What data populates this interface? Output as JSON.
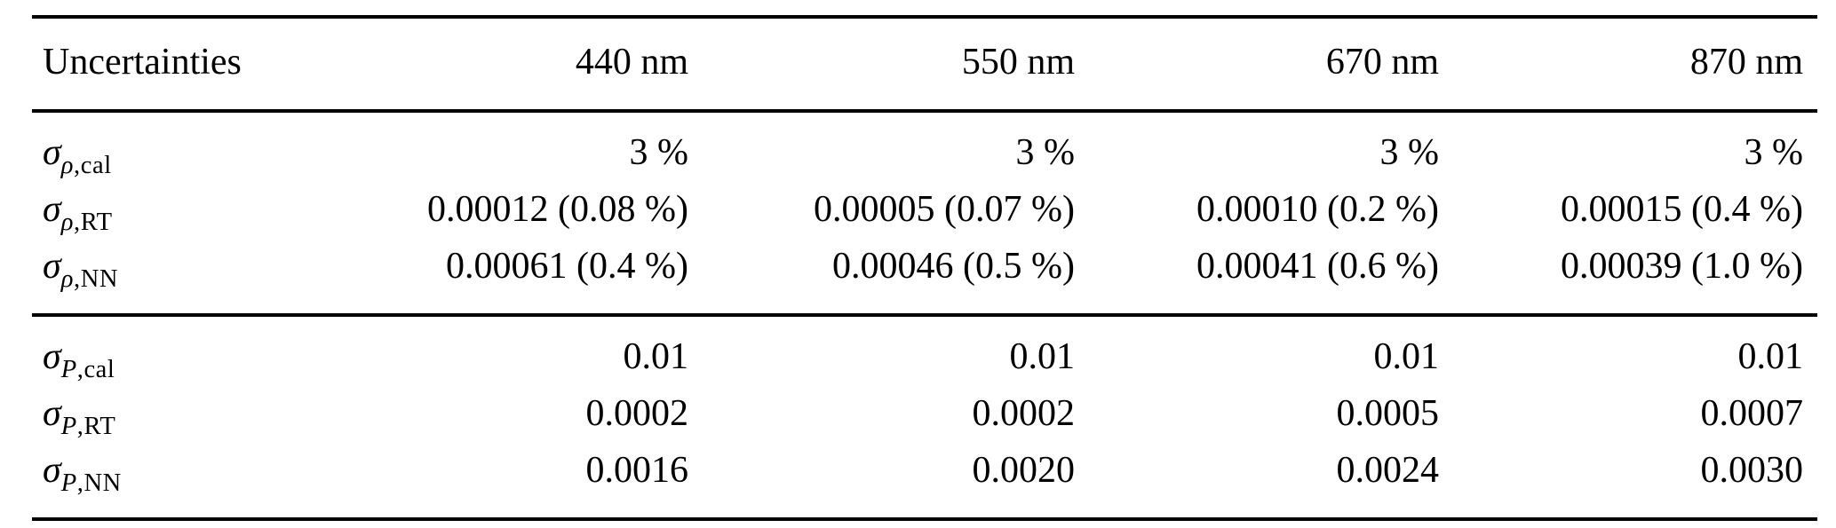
{
  "page": {
    "background": "#ffffff",
    "text_color": "#000000",
    "rule_color": "#000000"
  },
  "table": {
    "columns": [
      "Uncertainties",
      "440 nm",
      "550 nm",
      "670 nm",
      "870 nm"
    ],
    "groups": [
      {
        "rows": [
          {
            "label": {
              "base": "σ",
              "sub_var": "ρ",
              "sub_rest": ",cal"
            },
            "values": [
              "3 %",
              "3 %",
              "3 %",
              "3 %"
            ]
          },
          {
            "label": {
              "base": "σ",
              "sub_var": "ρ",
              "sub_rest": ",RT"
            },
            "values": [
              "0.00012 (0.08 %)",
              "0.00005 (0.07 %)",
              "0.00010 (0.2 %)",
              "0.00015 (0.4 %)"
            ]
          },
          {
            "label": {
              "base": "σ",
              "sub_var": "ρ",
              "sub_rest": ",NN"
            },
            "values": [
              "0.00061 (0.4 %)",
              "0.00046 (0.5 %)",
              "0.00041 (0.6 %)",
              "0.00039 (1.0 %)"
            ]
          }
        ]
      },
      {
        "rows": [
          {
            "label": {
              "base": "σ",
              "sub_var": "P",
              "sub_rest": ",cal"
            },
            "values": [
              "0.01",
              "0.01",
              "0.01",
              "0.01"
            ]
          },
          {
            "label": {
              "base": "σ",
              "sub_var": "P",
              "sub_rest": ",RT"
            },
            "values": [
              "0.0002",
              "0.0002",
              "0.0005",
              "0.0007"
            ]
          },
          {
            "label": {
              "base": "σ",
              "sub_var": "P",
              "sub_rest": ",NN"
            },
            "values": [
              "0.0016",
              "0.0020",
              "0.0024",
              "0.0030"
            ]
          }
        ]
      }
    ]
  }
}
